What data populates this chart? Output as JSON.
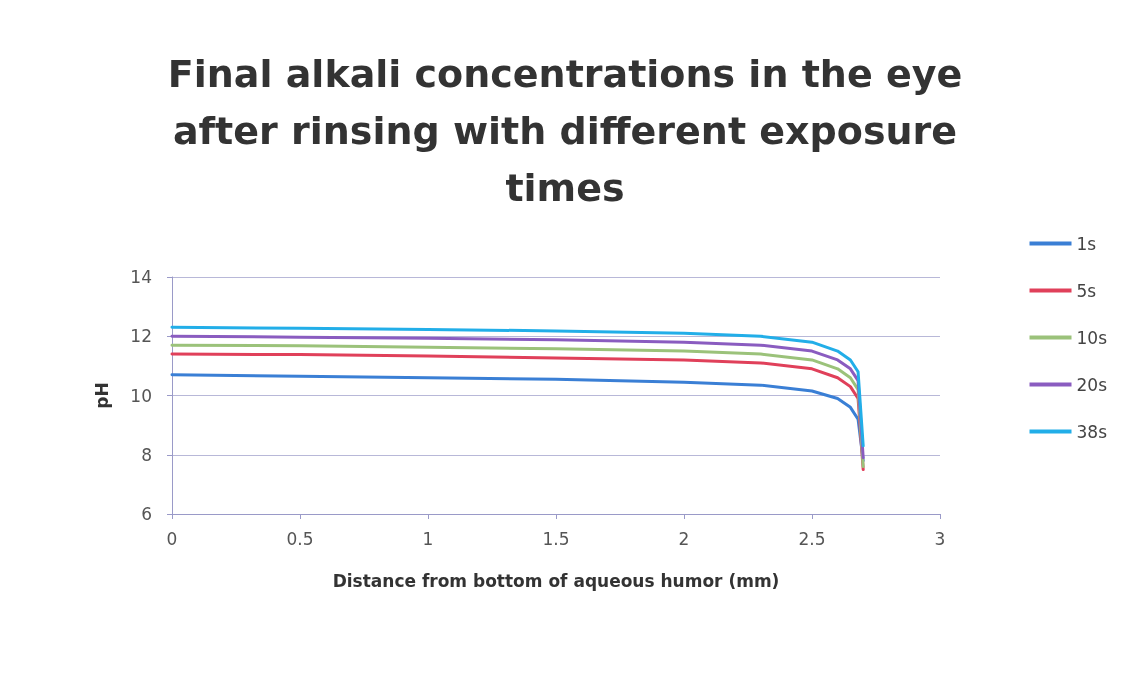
{
  "chart_data": {
    "type": "line",
    "title": "Final alkali concentrations in the eye\nafter rinsing with different exposure\ntimes",
    "xlabel": "Distance from bottom of aqueous humor (mm)",
    "ylabel": "pH",
    "x": [
      0,
      0.5,
      1,
      1.5,
      2,
      2.3,
      2.5,
      2.6,
      2.65,
      2.68,
      2.7
    ],
    "series": [
      {
        "name": "1s",
        "color": "#3a7fd5",
        "values": [
          10.7,
          10.65,
          10.6,
          10.55,
          10.45,
          10.35,
          10.15,
          9.9,
          9.6,
          9.2,
          7.8
        ]
      },
      {
        "name": "5s",
        "color": "#e0405a",
        "values": [
          11.4,
          11.38,
          11.33,
          11.27,
          11.2,
          11.1,
          10.9,
          10.6,
          10.3,
          9.9,
          7.5
        ]
      },
      {
        "name": "10s",
        "color": "#9bc27a",
        "values": [
          11.7,
          11.68,
          11.63,
          11.58,
          11.5,
          11.4,
          11.2,
          10.9,
          10.6,
          10.2,
          7.6
        ]
      },
      {
        "name": "20s",
        "color": "#8a5cc0",
        "values": [
          12.0,
          11.97,
          11.93,
          11.88,
          11.8,
          11.7,
          11.5,
          11.2,
          10.9,
          10.5,
          7.9
        ]
      },
      {
        "name": "38s",
        "color": "#22aee8",
        "values": [
          12.3,
          12.27,
          12.23,
          12.18,
          12.1,
          12.0,
          11.8,
          11.5,
          11.2,
          10.8,
          8.3
        ]
      }
    ],
    "xlim": [
      0,
      3
    ],
    "xticks": [
      0,
      0.5,
      1,
      1.5,
      2,
      2.5,
      3
    ],
    "ylim": [
      6,
      14
    ],
    "yticks": [
      6,
      8,
      10,
      12,
      14
    ],
    "grid": "y",
    "legend": "right",
    "marker": "none",
    "line_style": "solid"
  }
}
